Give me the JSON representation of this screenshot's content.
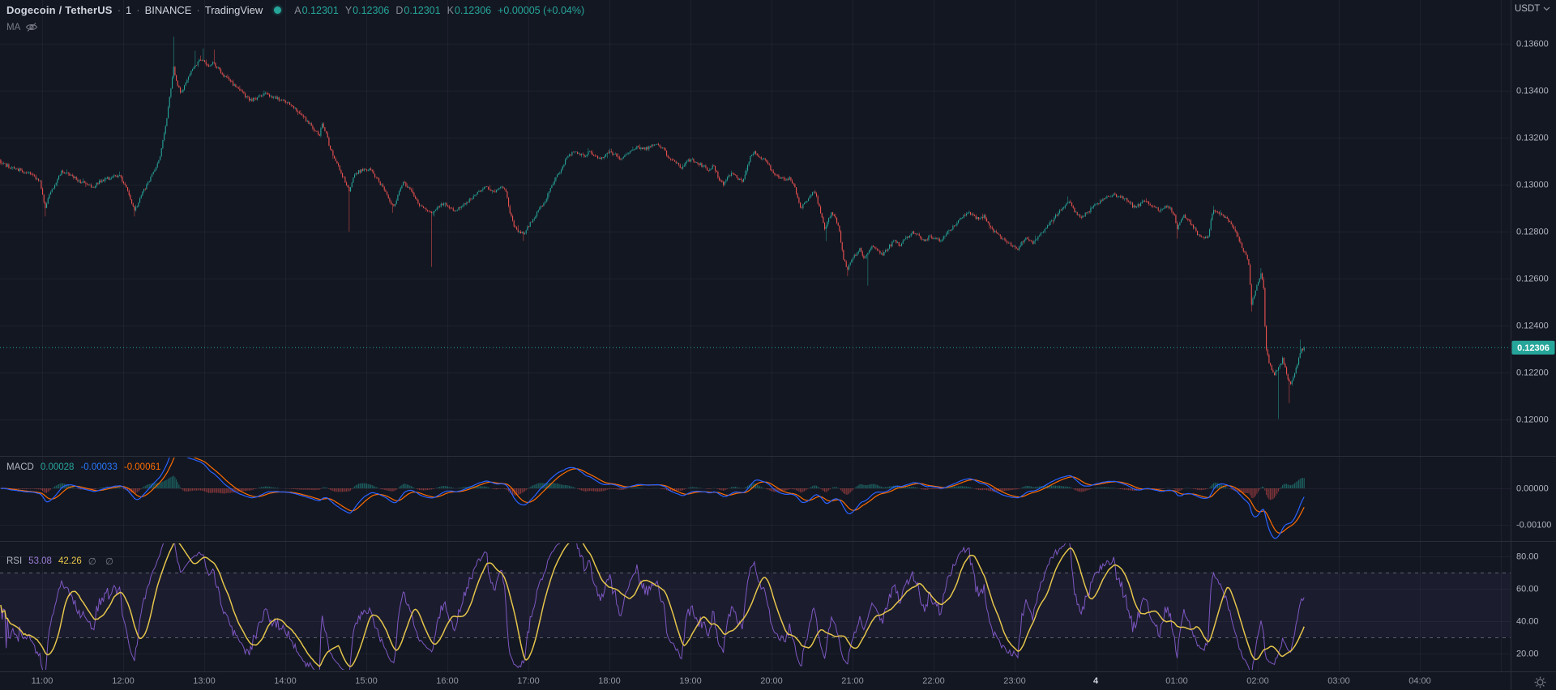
{
  "header": {
    "symbol": "Dogecoin / TetherUS",
    "separator": "·",
    "interval": "1",
    "exchange": "BINANCE",
    "platform": "TradingView",
    "status_color": "#26a69a",
    "ohlc": [
      {
        "label": "A",
        "value": "0.12301"
      },
      {
        "label": "Y",
        "value": "0.12306"
      },
      {
        "label": "D",
        "value": "0.12301"
      },
      {
        "label": "K",
        "value": "0.12306"
      }
    ],
    "change": "+0.00005 (+0.04%)"
  },
  "ma_row": {
    "label": "MA"
  },
  "macd_row": {
    "label": "MACD",
    "histogram_value": "0.00028",
    "macd_value": "-0.00033",
    "signal_value": "-0.00061"
  },
  "rsi_row": {
    "label": "RSI",
    "rsi_value": "53.08",
    "ma_value": "42.26",
    "empty1": "∅",
    "empty2": "∅"
  },
  "currency_selector": {
    "label": "USDT"
  },
  "price_scale": {
    "labels": [
      "0.13600",
      "0.13400",
      "0.13200",
      "0.13000",
      "0.12800",
      "0.12600",
      "0.12400",
      "0.12200",
      "0.12000"
    ],
    "last_price_label": "0.12306"
  },
  "macd_scale": {
    "labels": [
      "0.00000",
      "-0.00100"
    ]
  },
  "rsi_scale": {
    "labels": [
      "80.00",
      "60.00",
      "40.00",
      "20.00"
    ]
  },
  "time_scale": {
    "labels": [
      "11:00",
      "12:00",
      "13:00",
      "14:00",
      "15:00",
      "16:00",
      "17:00",
      "18:00",
      "19:00",
      "20:00",
      "21:00",
      "22:00",
      "23:00",
      "4",
      "01:00",
      "02:00",
      "03:00",
      "04:00"
    ],
    "day_change_index": 13
  },
  "colors": {
    "background": "#131722",
    "up": "#26a69a",
    "down": "#ef5350",
    "macd_line": "#2962FF",
    "signal_line": "#FF6D00",
    "rsi_line": "#7E57C2",
    "rsi_ma_line": "#e5c54b",
    "axis_text": "#b2b5be",
    "time_text": "#9598a1",
    "grid": "rgba(240,243,250,0.05)",
    "divider": "#2a2e39",
    "last_price": "#26a69a",
    "band_fill": "rgba(126,87,194,0.08)",
    "band_line": "rgba(150,153,163,0.55)"
  },
  "chart_data": {
    "type": "candlestick",
    "title": "Dogecoin / TetherUS 1m BINANCE",
    "panes": [
      "price",
      "MACD",
      "RSI"
    ],
    "x_axis_labels": [
      "11:00",
      "12:00",
      "13:00",
      "14:00",
      "15:00",
      "16:00",
      "17:00",
      "18:00",
      "19:00",
      "20:00",
      "21:00",
      "22:00",
      "23:00",
      "4",
      "01:00",
      "02:00",
      "03:00",
      "04:00"
    ],
    "price_axis_ticks": [
      0.136,
      0.134,
      0.132,
      0.13,
      0.128,
      0.126,
      0.124,
      0.122,
      0.12
    ],
    "price_axis_range": [
      0.11845,
      0.13786
    ],
    "macd_axis_ticks": [
      0.0,
      -0.001
    ],
    "rsi_axis_ticks": [
      80,
      60,
      40,
      20
    ],
    "rsi_bands": [
      70,
      30
    ],
    "last_price": 0.12306,
    "last_values": {
      "macd_histogram": 0.00028,
      "macd": -0.00033,
      "macd_signal": -0.00061,
      "rsi": 53.08,
      "rsi_ma": 42.26
    },
    "minutes": 966,
    "start_label": "10:29",
    "price_anchors": [
      [
        0,
        0.1309
      ],
      [
        10,
        0.1307
      ],
      [
        20,
        0.1305
      ],
      [
        29,
        0.1302
      ],
      [
        33,
        0.129
      ],
      [
        36,
        0.1296
      ],
      [
        40,
        0.13
      ],
      [
        45,
        0.1306
      ],
      [
        52,
        0.1304
      ],
      [
        60,
        0.1301
      ],
      [
        68,
        0.1299
      ],
      [
        75,
        0.1302
      ],
      [
        82,
        0.1303
      ],
      [
        88,
        0.1304
      ],
      [
        93,
        0.1299
      ],
      [
        97,
        0.1292
      ],
      [
        99,
        0.1289
      ],
      [
        103,
        0.1294
      ],
      [
        108,
        0.13
      ],
      [
        114,
        0.1306
      ],
      [
        118,
        0.1312
      ],
      [
        122,
        0.1325
      ],
      [
        126,
        0.1341
      ],
      [
        128,
        0.135
      ],
      [
        130,
        0.1344
      ],
      [
        133,
        0.1339
      ],
      [
        136,
        0.1342
      ],
      [
        140,
        0.1347
      ],
      [
        144,
        0.1351
      ],
      [
        148,
        0.1353
      ],
      [
        151,
        0.1352
      ],
      [
        154,
        0.135
      ],
      [
        157,
        0.1352
      ],
      [
        160,
        0.135
      ],
      [
        164,
        0.1347
      ],
      [
        170,
        0.1344
      ],
      [
        177,
        0.134
      ],
      [
        184,
        0.1336
      ],
      [
        190,
        0.1337
      ],
      [
        196,
        0.1339
      ],
      [
        202,
        0.1337
      ],
      [
        208,
        0.1336
      ],
      [
        214,
        0.1334
      ],
      [
        220,
        0.1331
      ],
      [
        227,
        0.1327
      ],
      [
        232,
        0.1323
      ],
      [
        236,
        0.1321
      ],
      [
        238,
        0.1326
      ],
      [
        241,
        0.1322
      ],
      [
        244,
        0.1315
      ],
      [
        248,
        0.131
      ],
      [
        252,
        0.1305
      ],
      [
        256,
        0.13
      ],
      [
        258,
        0.1297
      ],
      [
        260,
        0.1301
      ],
      [
        263,
        0.1305
      ],
      [
        268,
        0.1306
      ],
      [
        273,
        0.1307
      ],
      [
        278,
        0.1303
      ],
      [
        283,
        0.1299
      ],
      [
        288,
        0.1293
      ],
      [
        291,
        0.1291
      ],
      [
        295,
        0.1297
      ],
      [
        298,
        0.1301
      ],
      [
        302,
        0.1299
      ],
      [
        307,
        0.1294
      ],
      [
        311,
        0.1291
      ],
      [
        315,
        0.1289
      ],
      [
        319,
        0.1288
      ],
      [
        323,
        0.129
      ],
      [
        328,
        0.1292
      ],
      [
        333,
        0.129
      ],
      [
        337,
        0.1289
      ],
      [
        342,
        0.1291
      ],
      [
        348,
        0.1294
      ],
      [
        353,
        0.1297
      ],
      [
        358,
        0.1299
      ],
      [
        362,
        0.1298
      ],
      [
        366,
        0.1297
      ],
      [
        370,
        0.1299
      ],
      [
        374,
        0.1297
      ],
      [
        377,
        0.1288
      ],
      [
        380,
        0.1282
      ],
      [
        384,
        0.128
      ],
      [
        387,
        0.1279
      ],
      [
        390,
        0.1282
      ],
      [
        394,
        0.1285
      ],
      [
        398,
        0.1289
      ],
      [
        402,
        0.1292
      ],
      [
        406,
        0.1297
      ],
      [
        411,
        0.1303
      ],
      [
        416,
        0.1308
      ],
      [
        420,
        0.1312
      ],
      [
        424,
        0.1314
      ],
      [
        428,
        0.1313
      ],
      [
        432,
        0.1312
      ],
      [
        436,
        0.1314
      ],
      [
        440,
        0.1312
      ],
      [
        444,
        0.1311
      ],
      [
        448,
        0.1313
      ],
      [
        452,
        0.1314
      ],
      [
        456,
        0.1312
      ],
      [
        460,
        0.1311
      ],
      [
        464,
        0.1313
      ],
      [
        468,
        0.1315
      ],
      [
        472,
        0.1316
      ],
      [
        477,
        0.1315
      ],
      [
        481,
        0.1316
      ],
      [
        485,
        0.1317
      ],
      [
        490,
        0.1316
      ],
      [
        495,
        0.1311
      ],
      [
        500,
        0.1309
      ],
      [
        504,
        0.1307
      ],
      [
        508,
        0.131
      ],
      [
        512,
        0.1311
      ],
      [
        516,
        0.1309
      ],
      [
        520,
        0.1308
      ],
      [
        524,
        0.1306
      ],
      [
        528,
        0.1308
      ],
      [
        532,
        0.1302
      ],
      [
        535,
        0.13
      ],
      [
        538,
        0.1303
      ],
      [
        541,
        0.1305
      ],
      [
        545,
        0.1303
      ],
      [
        549,
        0.1301
      ],
      [
        552,
        0.1306
      ],
      [
        555,
        0.1312
      ],
      [
        558,
        0.1314
      ],
      [
        561,
        0.1312
      ],
      [
        564,
        0.1311
      ],
      [
        568,
        0.1309
      ],
      [
        571,
        0.1306
      ],
      [
        575,
        0.1304
      ],
      [
        580,
        0.1302
      ],
      [
        584,
        0.1303
      ],
      [
        588,
        0.1299
      ],
      [
        592,
        0.129
      ],
      [
        595,
        0.1292
      ],
      [
        598,
        0.1294
      ],
      [
        601,
        0.1297
      ],
      [
        604,
        0.1295
      ],
      [
        607,
        0.1288
      ],
      [
        610,
        0.1281
      ],
      [
        612,
        0.1284
      ],
      [
        615,
        0.1288
      ],
      [
        618,
        0.1286
      ],
      [
        621,
        0.128
      ],
      [
        624,
        0.1268
      ],
      [
        627,
        0.1264
      ],
      [
        630,
        0.1268
      ],
      [
        633,
        0.127
      ],
      [
        636,
        0.1273
      ],
      [
        639,
        0.1269
      ],
      [
        642,
        0.1271
      ],
      [
        645,
        0.1274
      ],
      [
        649,
        0.1272
      ],
      [
        653,
        0.127
      ],
      [
        657,
        0.1273
      ],
      [
        661,
        0.1276
      ],
      [
        666,
        0.1274
      ],
      [
        670,
        0.1277
      ],
      [
        675,
        0.128
      ],
      [
        680,
        0.1278
      ],
      [
        684,
        0.1276
      ],
      [
        688,
        0.1278
      ],
      [
        692,
        0.1277
      ],
      [
        696,
        0.1276
      ],
      [
        700,
        0.1279
      ],
      [
        704,
        0.1281
      ],
      [
        708,
        0.1284
      ],
      [
        712,
        0.1286
      ],
      [
        716,
        0.1288
      ],
      [
        720,
        0.1287
      ],
      [
        724,
        0.1285
      ],
      [
        728,
        0.1287
      ],
      [
        731,
        0.1284
      ],
      [
        734,
        0.1281
      ],
      [
        738,
        0.1279
      ],
      [
        742,
        0.1277
      ],
      [
        746,
        0.1275
      ],
      [
        750,
        0.1274
      ],
      [
        753,
        0.1272
      ],
      [
        756,
        0.1276
      ],
      [
        760,
        0.1277
      ],
      [
        764,
        0.1275
      ],
      [
        768,
        0.1278
      ],
      [
        772,
        0.128
      ],
      [
        776,
        0.1283
      ],
      [
        780,
        0.1286
      ],
      [
        784,
        0.1289
      ],
      [
        788,
        0.1291
      ],
      [
        791,
        0.1293
      ],
      [
        794,
        0.129
      ],
      [
        797,
        0.1287
      ],
      [
        800,
        0.1286
      ],
      [
        804,
        0.1288
      ],
      [
        808,
        0.129
      ],
      [
        812,
        0.1292
      ],
      [
        816,
        0.1294
      ],
      [
        820,
        0.1295
      ],
      [
        824,
        0.1296
      ],
      [
        828,
        0.1295
      ],
      [
        832,
        0.1294
      ],
      [
        836,
        0.1292
      ],
      [
        840,
        0.129
      ],
      [
        844,
        0.1292
      ],
      [
        848,
        0.1293
      ],
      [
        851,
        0.1291
      ],
      [
        855,
        0.129
      ],
      [
        858,
        0.1289
      ],
      [
        862,
        0.1291
      ],
      [
        866,
        0.129
      ],
      [
        869,
        0.1287
      ],
      [
        871,
        0.1281
      ],
      [
        873,
        0.1284
      ],
      [
        876,
        0.1287
      ],
      [
        879,
        0.1285
      ],
      [
        882,
        0.1283
      ],
      [
        885,
        0.128
      ],
      [
        888,
        0.1278
      ],
      [
        891,
        0.1277
      ],
      [
        894,
        0.1278
      ],
      [
        896,
        0.1285
      ],
      [
        898,
        0.1289
      ],
      [
        901,
        0.1288
      ],
      [
        904,
        0.1287
      ],
      [
        907,
        0.1286
      ],
      [
        910,
        0.1284
      ],
      [
        913,
        0.1281
      ],
      [
        916,
        0.1278
      ],
      [
        919,
        0.1273
      ],
      [
        922,
        0.127
      ],
      [
        924,
        0.1266
      ],
      [
        926,
        0.1249
      ],
      [
        928,
        0.1253
      ],
      [
        930,
        0.1257
      ],
      [
        932,
        0.126
      ],
      [
        933,
        0.1262
      ],
      [
        935,
        0.1256
      ],
      [
        936,
        0.124
      ],
      [
        937,
        0.123
      ],
      [
        939,
        0.1224
      ],
      [
        941,
        0.1221
      ],
      [
        943,
        0.1219
      ],
      [
        945,
        0.1221
      ],
      [
        947,
        0.1223
      ],
      [
        949,
        0.1226
      ],
      [
        951,
        0.1222
      ],
      [
        953,
        0.1217
      ],
      [
        955,
        0.1215
      ],
      [
        957,
        0.1218
      ],
      [
        959,
        0.1222
      ],
      [
        961,
        0.1226
      ],
      [
        963,
        0.123
      ],
      [
        965,
        0.12306
      ]
    ],
    "wick_events": [
      [
        33,
        "low",
        0.12865
      ],
      [
        99,
        "low",
        0.12865
      ],
      [
        128,
        "high",
        0.1363
      ],
      [
        144,
        "high",
        0.1357
      ],
      [
        150,
        "high",
        0.1358
      ],
      [
        158,
        "high",
        0.13575
      ],
      [
        258,
        "low",
        0.128
      ],
      [
        290,
        "low",
        0.1288
      ],
      [
        319,
        "low",
        0.1265
      ],
      [
        387,
        "low",
        0.1276
      ],
      [
        611,
        "low",
        0.1276
      ],
      [
        627,
        "low",
        0.1261
      ],
      [
        642,
        "low",
        0.1257
      ],
      [
        790,
        "high",
        0.1295
      ],
      [
        871,
        "low",
        0.1277
      ],
      [
        898,
        "high",
        0.1291
      ],
      [
        926,
        "low",
        0.1246
      ],
      [
        933,
        "high",
        0.12645
      ],
      [
        946,
        "low",
        0.12003
      ],
      [
        954,
        "low",
        0.1207
      ],
      [
        962,
        "high",
        0.1234
      ]
    ]
  }
}
